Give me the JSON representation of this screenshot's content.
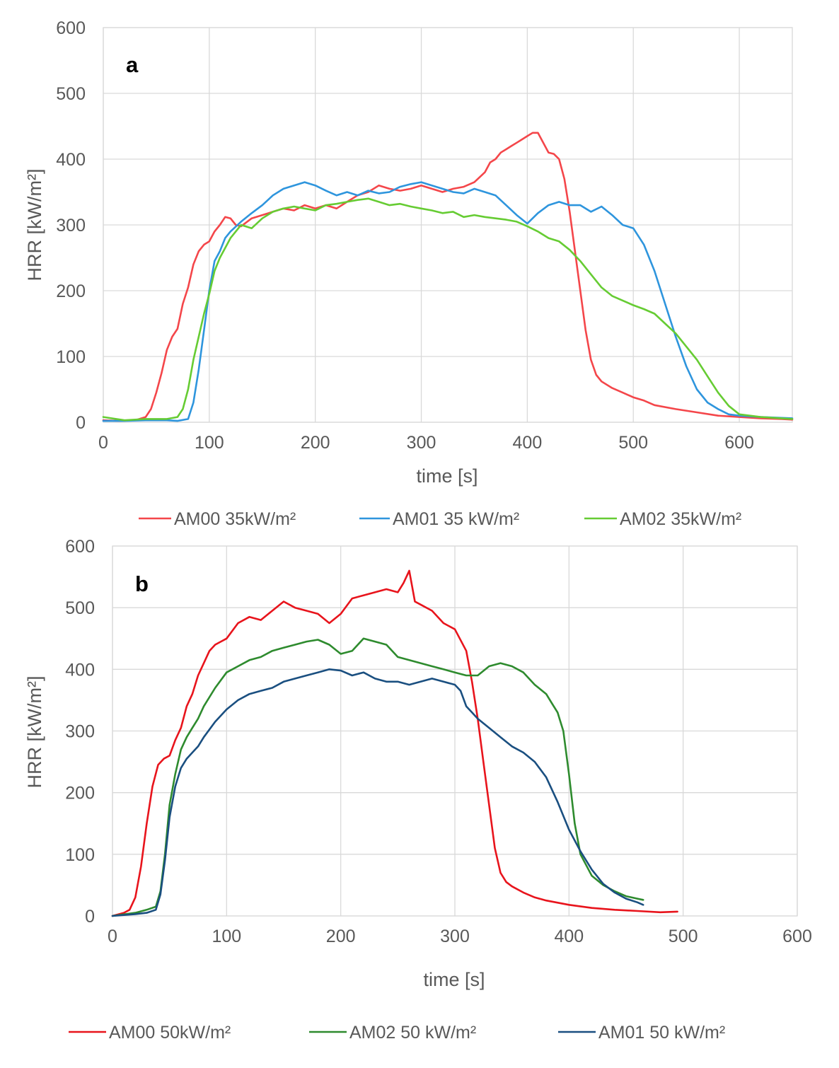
{
  "chart_data": [
    {
      "type": "line",
      "panel_label": "a",
      "xlabel": "time [s]",
      "ylabel": "HRR [kW/m²]",
      "xlim": [
        0,
        650
      ],
      "ylim": [
        0,
        600
      ],
      "xticks": [
        0,
        100,
        200,
        300,
        400,
        500,
        600
      ],
      "yticks": [
        0,
        100,
        200,
        300,
        400,
        500,
        600
      ],
      "grid": true,
      "legend_position": "bottom",
      "series": [
        {
          "name": "AM00 35kW/m²",
          "color": "#f4464a",
          "x": [
            0,
            15,
            30,
            40,
            45,
            50,
            55,
            60,
            65,
            70,
            75,
            80,
            85,
            90,
            95,
            100,
            105,
            110,
            115,
            120,
            125,
            130,
            140,
            150,
            160,
            170,
            180,
            190,
            200,
            210,
            220,
            230,
            240,
            250,
            260,
            270,
            280,
            290,
            300,
            310,
            320,
            330,
            340,
            350,
            360,
            365,
            370,
            375,
            380,
            385,
            390,
            395,
            400,
            405,
            410,
            415,
            420,
            425,
            430,
            435,
            440,
            445,
            450,
            455,
            460,
            465,
            470,
            480,
            490,
            500,
            510,
            520,
            540,
            560,
            580,
            600,
            620,
            640,
            650
          ],
          "y": [
            3,
            2,
            3,
            8,
            20,
            45,
            75,
            110,
            130,
            142,
            180,
            205,
            240,
            260,
            270,
            275,
            290,
            300,
            312,
            310,
            300,
            298,
            310,
            315,
            320,
            325,
            322,
            330,
            325,
            330,
            325,
            335,
            345,
            350,
            360,
            355,
            352,
            355,
            360,
            355,
            350,
            355,
            358,
            365,
            380,
            395,
            400,
            410,
            415,
            420,
            425,
            430,
            435,
            440,
            440,
            425,
            410,
            408,
            400,
            370,
            320,
            260,
            200,
            140,
            95,
            72,
            62,
            52,
            45,
            38,
            33,
            26,
            20,
            15,
            10,
            8,
            6,
            5,
            4
          ]
        },
        {
          "name": "AM01 35 kW/m²",
          "color": "#2e95dd",
          "x": [
            0,
            20,
            40,
            60,
            70,
            80,
            85,
            90,
            95,
            100,
            105,
            110,
            115,
            120,
            130,
            140,
            150,
            160,
            170,
            180,
            190,
            200,
            210,
            220,
            230,
            240,
            250,
            260,
            270,
            280,
            290,
            300,
            310,
            320,
            330,
            340,
            350,
            360,
            370,
            380,
            390,
            400,
            410,
            420,
            430,
            440,
            450,
            460,
            470,
            480,
            490,
            500,
            510,
            520,
            530,
            540,
            550,
            560,
            570,
            580,
            590,
            600,
            620,
            650
          ],
          "y": [
            2,
            2,
            3,
            3,
            2,
            5,
            30,
            80,
            140,
            200,
            245,
            260,
            280,
            290,
            305,
            318,
            330,
            345,
            355,
            360,
            365,
            360,
            352,
            345,
            350,
            345,
            352,
            348,
            350,
            358,
            362,
            365,
            360,
            355,
            350,
            348,
            355,
            350,
            345,
            330,
            315,
            302,
            318,
            330,
            335,
            330,
            330,
            320,
            328,
            315,
            300,
            295,
            270,
            230,
            180,
            130,
            85,
            50,
            30,
            20,
            12,
            10,
            8,
            6
          ]
        },
        {
          "name": "AM02 35kW/m²",
          "color": "#66cc33",
          "x": [
            0,
            20,
            40,
            60,
            70,
            75,
            80,
            85,
            90,
            95,
            100,
            105,
            110,
            115,
            120,
            130,
            140,
            150,
            160,
            170,
            180,
            190,
            200,
            210,
            220,
            230,
            240,
            250,
            260,
            270,
            280,
            290,
            300,
            310,
            320,
            330,
            340,
            350,
            360,
            370,
            380,
            390,
            400,
            410,
            420,
            430,
            440,
            450,
            460,
            470,
            480,
            490,
            500,
            510,
            520,
            530,
            540,
            550,
            560,
            570,
            580,
            590,
            600,
            620,
            650
          ],
          "y": [
            8,
            3,
            5,
            5,
            8,
            20,
            50,
            95,
            130,
            165,
            195,
            230,
            250,
            265,
            280,
            300,
            295,
            310,
            320,
            325,
            328,
            325,
            322,
            330,
            332,
            335,
            338,
            340,
            335,
            330,
            332,
            328,
            325,
            322,
            318,
            320,
            312,
            315,
            312,
            310,
            308,
            305,
            298,
            290,
            280,
            275,
            262,
            245,
            225,
            205,
            192,
            185,
            178,
            172,
            165,
            150,
            135,
            115,
            95,
            70,
            45,
            25,
            12,
            8,
            5
          ]
        }
      ]
    },
    {
      "type": "line",
      "panel_label": "b",
      "xlabel": "time [s]",
      "ylabel": "HRR [kW/m²]",
      "xlim": [
        0,
        600
      ],
      "ylim": [
        0,
        600
      ],
      "xticks": [
        0,
        100,
        200,
        300,
        400,
        500,
        600
      ],
      "yticks": [
        0,
        100,
        200,
        300,
        400,
        500,
        600
      ],
      "grid": true,
      "legend_position": "bottom",
      "series": [
        {
          "name": "AM00 50kW/m²",
          "color": "#e8141c",
          "x": [
            0,
            10,
            15,
            20,
            25,
            30,
            35,
            40,
            45,
            50,
            55,
            60,
            65,
            70,
            75,
            80,
            85,
            90,
            95,
            100,
            110,
            120,
            130,
            140,
            150,
            160,
            170,
            180,
            190,
            200,
            210,
            220,
            230,
            240,
            250,
            255,
            260,
            265,
            270,
            280,
            290,
            300,
            310,
            315,
            320,
            325,
            330,
            335,
            340,
            345,
            350,
            360,
            370,
            380,
            400,
            420,
            440,
            460,
            480,
            495
          ],
          "y": [
            0,
            5,
            10,
            30,
            80,
            150,
            210,
            245,
            255,
            260,
            285,
            305,
            340,
            360,
            390,
            410,
            430,
            440,
            445,
            450,
            475,
            485,
            480,
            495,
            510,
            500,
            495,
            490,
            475,
            490,
            515,
            520,
            525,
            530,
            525,
            540,
            560,
            510,
            505,
            495,
            475,
            465,
            430,
            380,
            320,
            250,
            180,
            110,
            70,
            55,
            48,
            38,
            30,
            25,
            18,
            13,
            10,
            8,
            6,
            7
          ]
        },
        {
          "name": "AM02 50 kW/m²",
          "color": "#2e8b2e",
          "x": [
            0,
            20,
            30,
            38,
            42,
            46,
            50,
            55,
            60,
            65,
            70,
            75,
            80,
            90,
            100,
            110,
            120,
            130,
            140,
            150,
            160,
            170,
            180,
            190,
            200,
            210,
            220,
            230,
            240,
            250,
            260,
            270,
            280,
            290,
            300,
            310,
            320,
            330,
            340,
            350,
            360,
            370,
            380,
            385,
            390,
            395,
            400,
            405,
            410,
            420,
            430,
            440,
            450,
            460,
            465
          ],
          "y": [
            0,
            5,
            10,
            15,
            40,
            100,
            180,
            230,
            270,
            290,
            305,
            320,
            340,
            370,
            395,
            405,
            415,
            420,
            430,
            435,
            440,
            445,
            448,
            440,
            425,
            430,
            450,
            445,
            440,
            420,
            415,
            410,
            405,
            400,
            395,
            390,
            390,
            405,
            410,
            405,
            395,
            375,
            360,
            345,
            330,
            300,
            230,
            150,
            100,
            65,
            50,
            40,
            32,
            28,
            26
          ]
        },
        {
          "name": "AM01 50 kW/m²",
          "color": "#1a4f80",
          "x": [
            0,
            20,
            30,
            38,
            42,
            46,
            50,
            55,
            60,
            65,
            70,
            75,
            80,
            90,
            100,
            110,
            120,
            130,
            140,
            150,
            160,
            170,
            180,
            190,
            200,
            210,
            220,
            230,
            240,
            250,
            260,
            270,
            280,
            290,
            300,
            305,
            310,
            315,
            320,
            330,
            340,
            350,
            360,
            370,
            380,
            390,
            400,
            410,
            420,
            430,
            440,
            450,
            460,
            465
          ],
          "y": [
            0,
            3,
            5,
            10,
            35,
            90,
            160,
            210,
            240,
            255,
            265,
            275,
            290,
            315,
            335,
            350,
            360,
            365,
            370,
            380,
            385,
            390,
            395,
            400,
            398,
            390,
            395,
            385,
            380,
            380,
            375,
            380,
            385,
            380,
            375,
            365,
            340,
            330,
            320,
            305,
            290,
            275,
            265,
            250,
            225,
            185,
            140,
            105,
            75,
            52,
            38,
            28,
            22,
            18
          ]
        }
      ]
    }
  ]
}
